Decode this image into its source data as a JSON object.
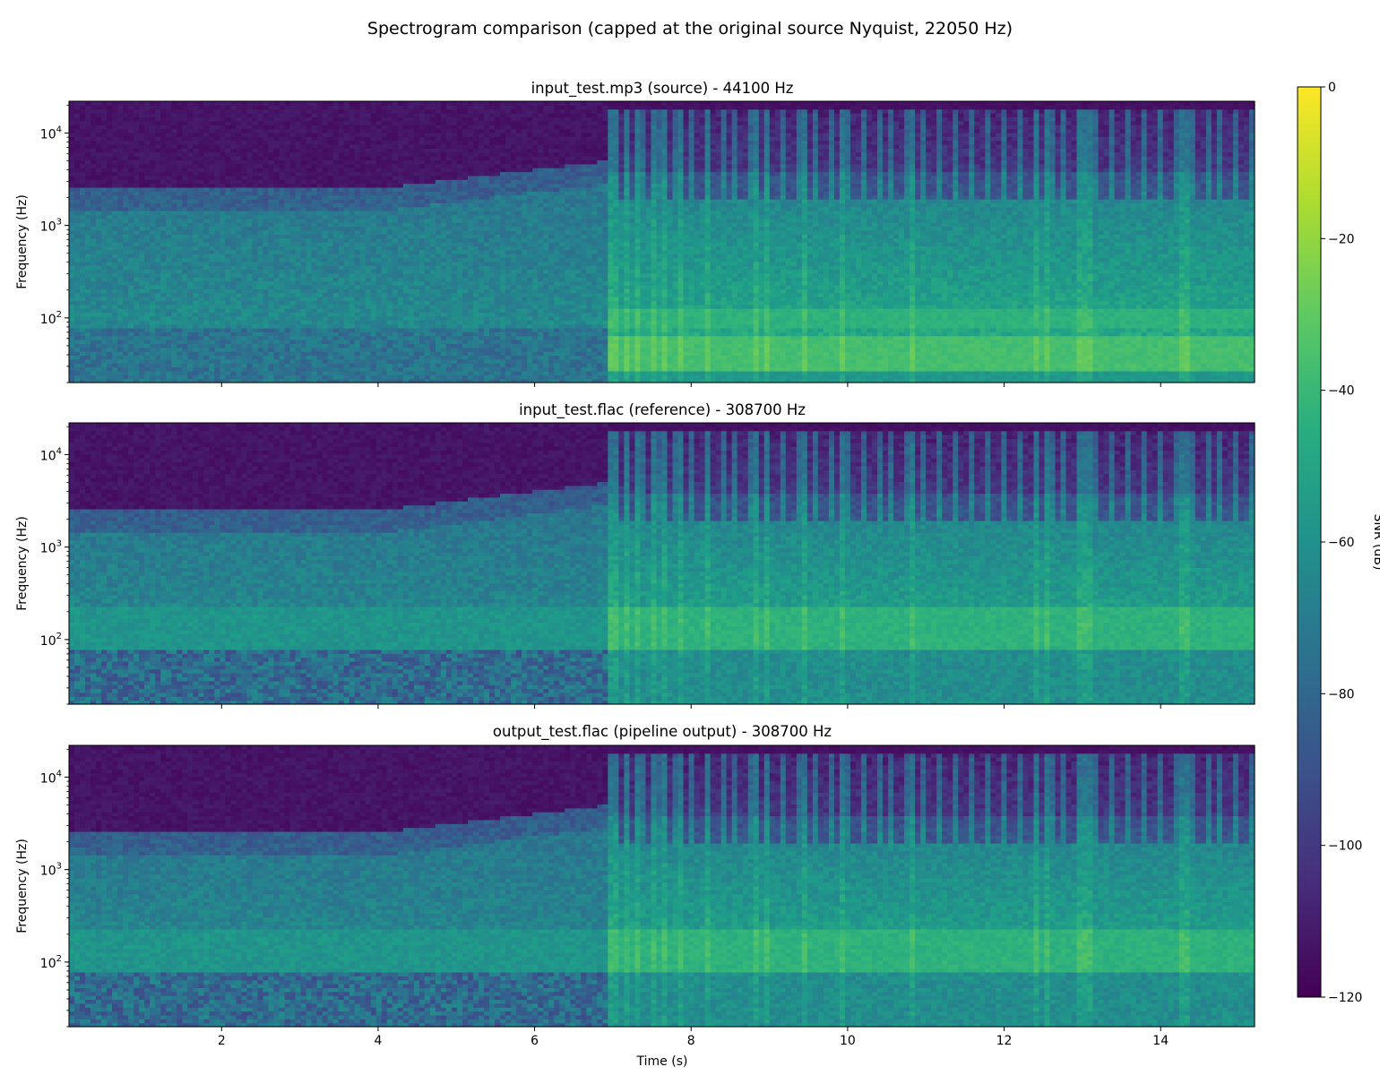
{
  "chart_data": {
    "type": "heatmap",
    "title": "Spectrogram comparison (capped at the original source Nyquist, 22050 Hz)",
    "xlabel": "Time (s)",
    "ylabel": "Frequency (Hz)",
    "x_range": [
      0.05,
      15.2
    ],
    "x_ticks": [
      2,
      4,
      6,
      8,
      10,
      12,
      14
    ],
    "y_scale": "log",
    "y_range": [
      20,
      22050
    ],
    "y_ticks": [
      {
        "value": 100,
        "base": "10",
        "exp": "2"
      },
      {
        "value": 1000,
        "base": "10",
        "exp": "3"
      },
      {
        "value": 10000,
        "base": "10",
        "exp": "4"
      }
    ],
    "colormap": "viridis",
    "colorbar": {
      "label": "SNR (dB)",
      "range": [
        -120,
        0
      ],
      "ticks": [
        "0",
        "−20",
        "−40",
        "−60",
        "−80",
        "−100",
        "−120"
      ]
    },
    "panels": [
      {
        "title": "input_test.mp3 (source) - 44100 Hz",
        "sample_rate_hz": 44100
      },
      {
        "title": "input_test.flac (reference) - 308700 Hz",
        "sample_rate_hz": 308700
      },
      {
        "title": "output_test.flac (pipeline output) - 308700 Hz",
        "sample_rate_hz": 308700
      }
    ],
    "features": {
      "onset_time_s": 6.95,
      "low_content_cutoff_hz_before_onset": 2500,
      "high_cutoff_hz_after_onset": 18000,
      "transient_times_s": [
        7.0,
        7.15,
        7.3,
        7.5,
        7.65,
        7.85,
        8.2,
        8.85,
        8.95,
        9.45,
        9.95,
        10.8,
        12.4,
        12.55,
        13.0,
        13.1,
        14.3
      ]
    }
  },
  "colors": {
    "viridis_low": "#440154",
    "viridis_mid": "#21918c",
    "viridis_high": "#fde725"
  }
}
